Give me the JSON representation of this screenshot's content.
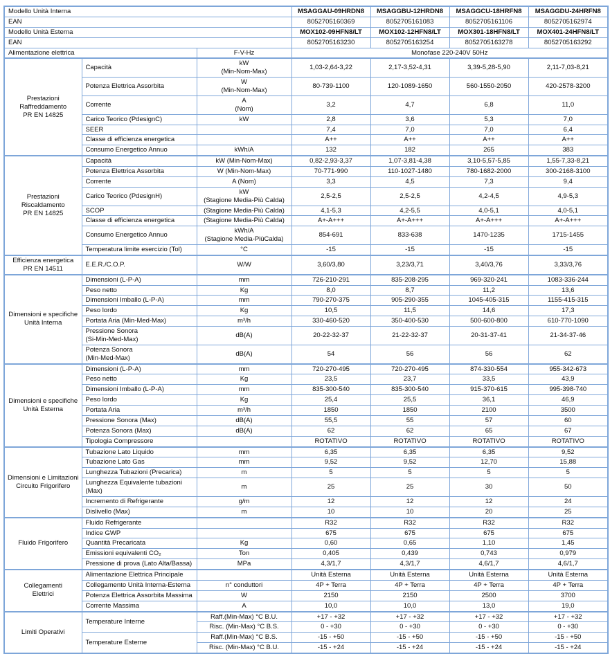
{
  "colors": {
    "table_border": "#7ea6d9",
    "text": "#0d0d0d",
    "background": "#ffffff"
  },
  "table": {
    "header_rows": [
      {
        "label": "Modello Unità Interna",
        "bold": true,
        "values": [
          "MSAGGAU-09HRDN8",
          "MSAGGBU-12HRDN8",
          "MSAGGCU-18HRFN8",
          "MSAGGDU-24HRFN8"
        ]
      },
      {
        "label": "EAN",
        "bold": false,
        "values": [
          "8052705160369",
          "8052705161083",
          "8052705161106",
          "8052705162974"
        ]
      },
      {
        "label": "Modello Unità Esterna",
        "bold": true,
        "values": [
          "MOX102-09HFN8/LT",
          "MOX102-12HFN8/LT",
          "MOX301-18HFN8/LT",
          "MOX401-24HFN8/LT"
        ]
      },
      {
        "label": "EAN",
        "bold": false,
        "values": [
          "8052705163230",
          "8052705163254",
          "8052705163278",
          "8052705163292"
        ]
      }
    ],
    "power_row": {
      "label": "Alimentazione elettrica",
      "unit": "F-V-Hz",
      "value": "Monofase 220-240V 50Hz"
    },
    "sections": [
      {
        "group": "Prestazioni\nRaffreddamento\nPR EN 14825",
        "rows": [
          {
            "label": "Capacità",
            "unit": "kW\n(Min-Nom-Max)",
            "values": [
              "1,03-2,64-3,22",
              "2,17-3,52-4,31",
              "3,39-5,28-5,90",
              "2,11-7,03-8,21"
            ]
          },
          {
            "label": "Potenza Elettrica Assorbita",
            "unit": "W\n(Min-Nom-Max)",
            "values": [
              "80-739-1100",
              "120-1089-1650",
              "560-1550-2050",
              "420-2578-3200"
            ]
          },
          {
            "label": "Corrente",
            "unit": "A\n(Nom)",
            "values": [
              "3,2",
              "4,7",
              "6,8",
              "11,0"
            ]
          },
          {
            "label": "Carico Teorico (PdesignC)",
            "unit": "kW",
            "values": [
              "2,8",
              "3,6",
              "5,3",
              "7,0"
            ]
          },
          {
            "label": "SEER",
            "unit": "",
            "values": [
              "7,4",
              "7,0",
              "7,0",
              "6,4"
            ]
          },
          {
            "label": "Classe di efficienza energetica",
            "unit": "",
            "values": [
              "A++",
              "A++",
              "A++",
              "A++"
            ]
          },
          {
            "label": "Consumo Energetico Annuo",
            "unit": "kWh/A",
            "values": [
              "132",
              "182",
              "265",
              "383"
            ]
          }
        ]
      },
      {
        "group": "Prestazioni\nRiscaldamento\nPR EN 14825",
        "rows": [
          {
            "label": "Capacità",
            "unit": "kW (Min-Nom-Max)",
            "values": [
              "0,82-2,93-3,37",
              "1,07-3,81-4,38",
              "3,10-5,57-5,85",
              "1,55-7,33-8,21"
            ]
          },
          {
            "label": "Potenza Elettrica Assorbita",
            "unit": "W (Min-Nom-Max)",
            "values": [
              "70-771-990",
              "110-1027-1480",
              "780-1682-2000",
              "300-2168-3100"
            ]
          },
          {
            "label": "Corrente",
            "unit": "A (Nom)",
            "values": [
              "3,3",
              "4,5",
              "7,3",
              "9,4"
            ]
          },
          {
            "label": "Carico Teorico (PdesignH)",
            "unit": "kW\n(Stagione Media-Più Calda)",
            "values": [
              "2,5-2,5",
              "2,5-2,5",
              "4,2-4,5",
              "4,9-5,3"
            ]
          },
          {
            "label": "SCOP",
            "unit": "(Stagione Media-Più Calda)",
            "values": [
              "4,1-5,3",
              "4,2-5,5",
              "4,0-5,1",
              "4,0-5,1"
            ]
          },
          {
            "label": "Classe di efficienza energetica",
            "unit": "(Stagione Media-Più Calda)",
            "values": [
              "A+-A+++",
              "A+-A+++",
              "A+-A+++",
              "A+-A+++"
            ]
          },
          {
            "label": "Consumo Energetico Annuo",
            "unit": "kWh/A\n(Stagione Media-PiùCalda)",
            "values": [
              "854-691",
              "833-638",
              "1470-1235",
              "1715-1455"
            ]
          },
          {
            "label": "Temperatura limite esercizio (Tol)",
            "unit": "°C",
            "values": [
              "-15",
              "-15",
              "-15",
              "-15"
            ]
          }
        ]
      },
      {
        "group": "Efficienza energetica\nPR EN 14511",
        "rows": [
          {
            "label": "E.E.R./C.O.P.",
            "unit": "W/W",
            "values": [
              "3,60/3,80",
              "3,23/3,71",
              "3,40/3,76",
              "3,33/3,76"
            ]
          }
        ]
      },
      {
        "group": "Dimensioni e specifiche\nUnità Interna",
        "rows": [
          {
            "label": "Dimensioni (L-P-A)",
            "unit": "mm",
            "values": [
              "726-210-291",
              "835-208-295",
              "969-320-241",
              "1083-336-244"
            ]
          },
          {
            "label": "Peso netto",
            "unit": "Kg",
            "values": [
              "8,0",
              "8,7",
              "11,2",
              "13,6"
            ]
          },
          {
            "label": "Dimensioni Imballo (L-P-A)",
            "unit": "mm",
            "values": [
              "790-270-375",
              "905-290-355",
              "1045-405-315",
              "1155-415-315"
            ]
          },
          {
            "label": "Peso lordo",
            "unit": "Kg",
            "values": [
              "10,5",
              "11,5",
              "14,6",
              "17,3"
            ]
          },
          {
            "label": "Portata Aria (Min-Med-Max)",
            "unit": "m³/h",
            "values": [
              "330-460-520",
              "350-400-530",
              "500-600-800",
              "610-770-1090"
            ]
          },
          {
            "label": "Pressione Sonora\n(Si-Min-Med-Max)",
            "unit": "dB(A)",
            "values": [
              "20-22-32-37",
              "21-22-32-37",
              "20-31-37-41",
              "21-34-37-46"
            ]
          },
          {
            "label": "Potenza Sonora\n(Min-Med-Max)",
            "unit": "dB(A)",
            "values": [
              "54",
              "56",
              "56",
              "62"
            ]
          }
        ]
      },
      {
        "group": "Dimensioni e specifiche\nUnità Esterna",
        "rows": [
          {
            "label": "Dimensioni (L-P-A)",
            "unit": "mm",
            "values": [
              "720-270-495",
              "720-270-495",
              "874-330-554",
              "955-342-673"
            ]
          },
          {
            "label": "Peso netto",
            "unit": "Kg",
            "values": [
              "23,5",
              "23,7",
              "33,5",
              "43,9"
            ]
          },
          {
            "label": "Dimensioni Imballo (L-P-A)",
            "unit": "mm",
            "values": [
              "835-300-540",
              "835-300-540",
              "915-370-615",
              "995-398-740"
            ]
          },
          {
            "label": "Peso lordo",
            "unit": "Kg",
            "values": [
              "25,4",
              "25,5",
              "36,1",
              "46,9"
            ]
          },
          {
            "label": "Portata Aria",
            "unit": "m³/h",
            "values": [
              "1850",
              "1850",
              "2100",
              "3500"
            ]
          },
          {
            "label": "Pressione Sonora (Max)",
            "unit": "dB(A)",
            "values": [
              "55,5",
              "55",
              "57",
              "60"
            ]
          },
          {
            "label": "Potenza Sonora (Max)",
            "unit": "dB(A)",
            "values": [
              "62",
              "62",
              "65",
              "67"
            ]
          },
          {
            "label": "Tipologia Compressore",
            "unit": "",
            "values": [
              "ROTATIVO",
              "ROTATIVO",
              "ROTATIVO",
              "ROTATIVO"
            ]
          }
        ]
      },
      {
        "group": "Dimensioni e Limitazioni\nCircuito Frigorifero",
        "rows": [
          {
            "label": "Tubazione Lato Liquido",
            "unit": "mm",
            "values": [
              "6,35",
              "6,35",
              "6,35",
              "9,52"
            ]
          },
          {
            "label": "Tubazione Lato Gas",
            "unit": "mm",
            "values": [
              "9,52",
              "9,52",
              "12,70",
              "15,88"
            ]
          },
          {
            "label": "Lunghezza Tubazioni (Precarica)",
            "unit": "m",
            "values": [
              "5",
              "5",
              "5",
              "5"
            ]
          },
          {
            "label": "Lunghezza Equivalente tubazioni (Max)",
            "unit": "m",
            "values": [
              "25",
              "25",
              "30",
              "50"
            ]
          },
          {
            "label": "Incremento di Refrigerante",
            "unit": "g/m",
            "values": [
              "12",
              "12",
              "12",
              "24"
            ]
          },
          {
            "label": "Dislivello (Max)",
            "unit": "m",
            "values": [
              "10",
              "10",
              "20",
              "25"
            ]
          }
        ]
      },
      {
        "group": "Fluido Frigorifero",
        "rows": [
          {
            "label": "Fluido Refrigerante",
            "unit": "",
            "values": [
              "R32",
              "R32",
              "R32",
              "R32"
            ]
          },
          {
            "label": "Indice GWP",
            "unit": "",
            "values": [
              "675",
              "675",
              "675",
              "675"
            ]
          },
          {
            "label": "Quantità Precaricata",
            "unit": "Kg",
            "values": [
              "0,60",
              "0,65",
              "1,10",
              "1,45"
            ]
          },
          {
            "label": "Emissioni equivalenti CO₂",
            "unit": "Ton",
            "values": [
              "0,405",
              "0,439",
              "0,743",
              "0,979"
            ]
          },
          {
            "label": "Pressione di prova (Lato Alta/Bassa)",
            "unit": "MPa",
            "values": [
              "4,3/1,7",
              "4,3/1,7",
              "4,6/1,7",
              "4,6/1,7"
            ]
          }
        ]
      },
      {
        "group": "Collegamenti\nElettrici",
        "rows": [
          {
            "label": "Alimentazione Elettrica Principale",
            "unit": "",
            "values": [
              "Unità Esterna",
              "Unità Esterna",
              "Unità Esterna",
              "Unità Esterna"
            ]
          },
          {
            "label": "Collegamento Unità Interna-Esterna",
            "unit": "n° conduttori",
            "values": [
              "4P + Terra",
              "4P + Terra",
              "4P + Terra",
              "4P + Terra"
            ]
          },
          {
            "label": "Potenza Elettrica Assorbita Massima",
            "unit": "W",
            "values": [
              "2150",
              "2150",
              "2500",
              "3700"
            ]
          },
          {
            "label": "Corrente Massima",
            "unit": "A",
            "values": [
              "10,0",
              "10,0",
              "13,0",
              "19,0"
            ]
          }
        ]
      },
      {
        "group": "Limiti Operativi",
        "rows": [
          {
            "label": "Temperature Interne",
            "label_rowspan": 2,
            "unit": "Raff.(Min-Max) °C B.U.",
            "values": [
              "+17 - +32",
              "+17 - +32",
              "+17 - +32",
              "+17 - +32"
            ]
          },
          {
            "label": null,
            "unit": "Risc. (Min-Max) °C B.S.",
            "values": [
              "0 - +30",
              "0 - +30",
              "0 - +30",
              "0 - +30"
            ]
          },
          {
            "label": "Temperature Esterne",
            "label_rowspan": 2,
            "unit": "Raff.(Min-Max) °C B.S.",
            "values": [
              "-15 - +50",
              "-15 - +50",
              "-15 - +50",
              "-15 - +50"
            ]
          },
          {
            "label": null,
            "unit": "Risc. (Min-Max) °C B.U.",
            "values": [
              "-15 - +24",
              "-15 - +24",
              "-15 - +24",
              "-15 - +24"
            ]
          }
        ]
      }
    ]
  }
}
